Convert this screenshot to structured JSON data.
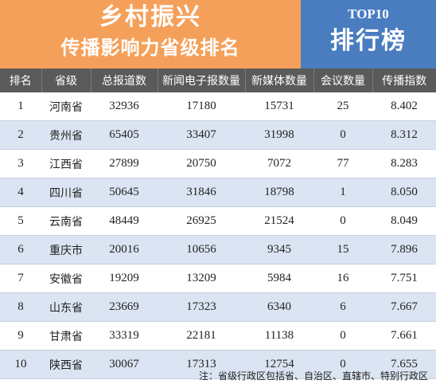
{
  "header": {
    "title": "乡村振兴",
    "subtitle": "传播影响力省级排名",
    "badge_top": "TOP10",
    "badge_main": "排行榜"
  },
  "table": {
    "columns": [
      "排名",
      "省级",
      "总报道数",
      "新闻电子报数量",
      "新媒体数量",
      "会议数量",
      "传播指数"
    ],
    "rows": [
      [
        "1",
        "河南省",
        "32936",
        "17180",
        "15731",
        "25",
        "8.402"
      ],
      [
        "2",
        "贵州省",
        "65405",
        "33407",
        "31998",
        "0",
        "8.312"
      ],
      [
        "3",
        "江西省",
        "27899",
        "20750",
        "7072",
        "77",
        "8.283"
      ],
      [
        "4",
        "四川省",
        "50645",
        "31846",
        "18798",
        "1",
        "8.050"
      ],
      [
        "5",
        "云南省",
        "48449",
        "26925",
        "21524",
        "0",
        "8.049"
      ],
      [
        "6",
        "重庆市",
        "20016",
        "10656",
        "9345",
        "15",
        "7.896"
      ],
      [
        "7",
        "安徽省",
        "19209",
        "13209",
        "5984",
        "16",
        "7.751"
      ],
      [
        "8",
        "山东省",
        "23669",
        "17323",
        "6340",
        "6",
        "7.667"
      ],
      [
        "9",
        "甘肃省",
        "33319",
        "22181",
        "11138",
        "0",
        "7.661"
      ],
      [
        "10",
        "陕西省",
        "30067",
        "17313",
        "12754",
        "0",
        "7.655"
      ]
    ]
  },
  "note": "注：省级行政区包括省、自治区、直辖市、特别行政区",
  "colors": {
    "title_bg": "#f5a05a",
    "badge_bg": "#4a7cc0",
    "header_row_bg": "#5a5a5a",
    "alt_row_bg": "#dbe4f2"
  }
}
